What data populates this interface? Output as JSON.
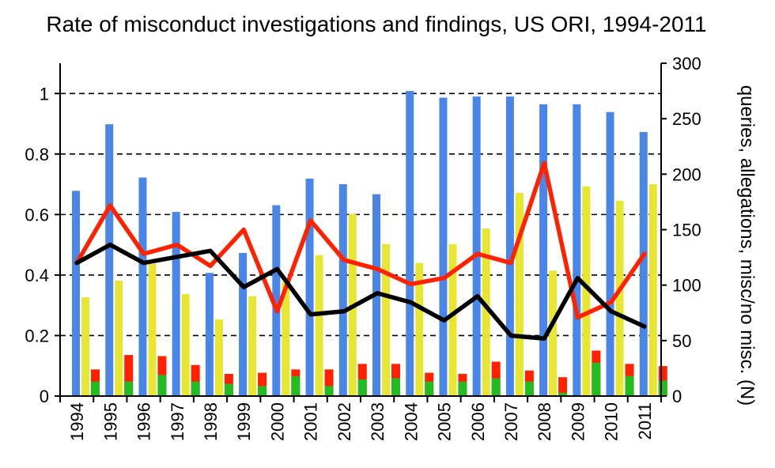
{
  "chart_data": {
    "type": "bar",
    "title": "Rate of misconduct investigations and findings, US ORI, 1994-2011",
    "categories": [
      "1994",
      "1995",
      "1996",
      "1997",
      "1998",
      "1999",
      "2000",
      "2001",
      "2002",
      "2003",
      "2004",
      "2005",
      "2006",
      "2007",
      "2008",
      "2009",
      "2010",
      "2011"
    ],
    "y_left": {
      "ylim": [
        0,
        1.1
      ],
      "ticks": [
        0,
        0.2,
        0.4,
        0.6,
        0.8,
        1
      ],
      "tick_labels": [
        "0",
        "0.2",
        "0.4",
        "0.6",
        "0.8",
        "1"
      ]
    },
    "y_right": {
      "label": "queries, allegations, misc/no misc. (N)",
      "ylim": [
        0,
        300
      ],
      "ticks": [
        0,
        50,
        100,
        150,
        200,
        250,
        300
      ],
      "tick_labels": [
        "0",
        "50",
        "100",
        "150",
        "200",
        "250",
        "300"
      ]
    },
    "grid": "dashed horizontal at left ticks 0.2, 0.4, 0.6, 0.8, 1",
    "bar_series": [
      {
        "color": "#4a86e8",
        "axis": "right",
        "values": [
          185,
          245,
          197,
          166,
          111,
          129,
          172,
          196,
          191,
          182,
          275,
          269,
          270,
          270,
          263,
          263,
          256,
          238
        ]
      },
      {
        "color": "#e6e633",
        "axis": "right",
        "values": [
          89,
          104,
          119,
          92,
          69,
          90,
          103,
          127,
          164,
          137,
          120,
          137,
          151,
          183,
          113,
          189,
          176,
          191
        ]
      },
      {
        "color": "#ff2200",
        "axis": "right",
        "stacked_with": "green",
        "values": [
          24,
          37,
          36,
          28,
          20,
          21,
          24,
          24,
          29,
          29,
          21,
          20,
          31,
          23,
          17,
          41,
          29,
          27
        ]
      },
      {
        "color": "#22bb22",
        "axis": "right",
        "values": [
          13,
          13,
          19,
          13,
          11,
          9,
          18,
          9,
          15,
          16,
          13,
          13,
          16,
          13,
          3,
          30,
          18,
          14
        ]
      }
    ],
    "line_series": [
      {
        "color": "#ff2200",
        "axis": "left",
        "values": [
          0.44,
          0.63,
          0.47,
          0.5,
          0.43,
          0.55,
          0.28,
          0.58,
          0.45,
          0.42,
          0.37,
          0.39,
          0.47,
          0.44,
          0.77,
          0.26,
          0.31,
          0.47
        ]
      },
      {
        "color": "#000000",
        "axis": "left",
        "values": [
          0.44,
          0.5,
          0.44,
          0.46,
          0.48,
          0.36,
          0.42,
          0.27,
          0.28,
          0.34,
          0.31,
          0.25,
          0.33,
          0.2,
          0.19,
          0.39,
          0.28,
          0.23
        ]
      }
    ]
  }
}
